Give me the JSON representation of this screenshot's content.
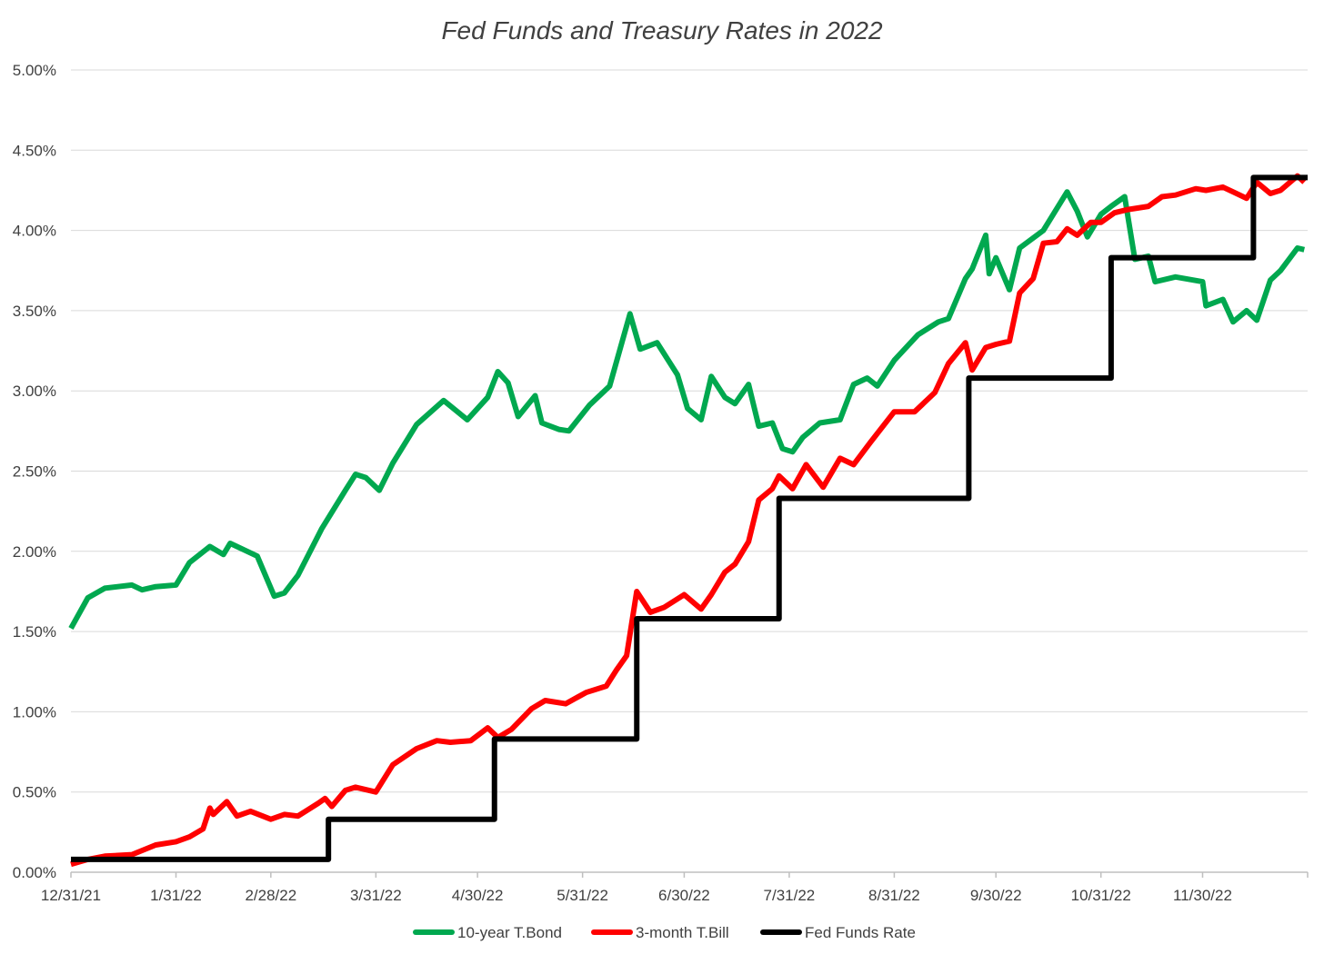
{
  "chart_data": {
    "type": "line",
    "title": "Fed Funds and Treasury Rates in 2022",
    "xlabel": "",
    "ylabel": "",
    "ylim": [
      0,
      0.05
    ],
    "xlim": [
      "2021-12-31",
      "2022-12-31"
    ],
    "grid": true,
    "legend_position": "bottom",
    "y_ticks": [
      "0.00%",
      "0.50%",
      "1.00%",
      "1.50%",
      "2.00%",
      "2.50%",
      "3.00%",
      "3.50%",
      "4.00%",
      "4.50%",
      "5.00%"
    ],
    "x_ticks": [
      {
        "date": "2021-12-31",
        "label": "12/31/21"
      },
      {
        "date": "2022-01-31",
        "label": "1/31/22"
      },
      {
        "date": "2022-02-28",
        "label": "2/28/22"
      },
      {
        "date": "2022-03-31",
        "label": "3/31/22"
      },
      {
        "date": "2022-04-30",
        "label": "4/30/22"
      },
      {
        "date": "2022-05-31",
        "label": "5/31/22"
      },
      {
        "date": "2022-06-30",
        "label": "6/30/22"
      },
      {
        "date": "2022-07-31",
        "label": "7/31/22"
      },
      {
        "date": "2022-08-31",
        "label": "8/31/22"
      },
      {
        "date": "2022-09-30",
        "label": "9/30/22"
      },
      {
        "date": "2022-10-31",
        "label": "10/31/22"
      },
      {
        "date": "2022-11-30",
        "label": "11/30/22"
      }
    ],
    "series": [
      {
        "name": "10-year T.Bond",
        "color": "#00a84f",
        "style": "line",
        "x": [
          "2021-12-31",
          "2022-01-05",
          "2022-01-10",
          "2022-01-18",
          "2022-01-21",
          "2022-01-25",
          "2022-01-31",
          "2022-02-04",
          "2022-02-10",
          "2022-02-14",
          "2022-02-16",
          "2022-02-24",
          "2022-03-01",
          "2022-03-04",
          "2022-03-08",
          "2022-03-15",
          "2022-03-22",
          "2022-03-25",
          "2022-03-28",
          "2022-04-01",
          "2022-04-05",
          "2022-04-12",
          "2022-04-20",
          "2022-04-27",
          "2022-05-03",
          "2022-05-06",
          "2022-05-09",
          "2022-05-12",
          "2022-05-17",
          "2022-05-19",
          "2022-05-24",
          "2022-05-27",
          "2022-06-02",
          "2022-06-08",
          "2022-06-14",
          "2022-06-17",
          "2022-06-22",
          "2022-06-28",
          "2022-07-01",
          "2022-07-05",
          "2022-07-08",
          "2022-07-12",
          "2022-07-15",
          "2022-07-19",
          "2022-07-22",
          "2022-07-26",
          "2022-07-29",
          "2022-08-01",
          "2022-08-04",
          "2022-08-09",
          "2022-08-15",
          "2022-08-19",
          "2022-08-23",
          "2022-08-26",
          "2022-08-31",
          "2022-09-07",
          "2022-09-13",
          "2022-09-16",
          "2022-09-21",
          "2022-09-23",
          "2022-09-27",
          "2022-09-28",
          "2022-09-30",
          "2022-10-04",
          "2022-10-07",
          "2022-10-14",
          "2022-10-21",
          "2022-10-24",
          "2022-10-27",
          "2022-10-31",
          "2022-11-03",
          "2022-11-07",
          "2022-11-10",
          "2022-11-14",
          "2022-11-16",
          "2022-11-22",
          "2022-11-30",
          "2022-12-01",
          "2022-12-06",
          "2022-12-09",
          "2022-12-13",
          "2022-12-16",
          "2022-12-20",
          "2022-12-23",
          "2022-12-28",
          "2022-12-30"
        ],
        "values": [
          1.52,
          1.71,
          1.77,
          1.79,
          1.76,
          1.78,
          1.79,
          1.93,
          2.03,
          1.98,
          2.05,
          1.97,
          1.72,
          1.74,
          1.85,
          2.14,
          2.38,
          2.48,
          2.46,
          2.38,
          2.55,
          2.79,
          2.94,
          2.82,
          2.96,
          3.12,
          3.05,
          2.84,
          2.97,
          2.8,
          2.76,
          2.75,
          2.91,
          3.03,
          3.48,
          3.26,
          3.3,
          3.1,
          2.89,
          2.82,
          3.09,
          2.96,
          2.92,
          3.04,
          2.78,
          2.8,
          2.64,
          2.62,
          2.71,
          2.8,
          2.82,
          3.04,
          3.08,
          3.03,
          3.19,
          3.35,
          3.43,
          3.45,
          3.7,
          3.76,
          3.97,
          3.73,
          3.83,
          3.63,
          3.89,
          4.0,
          4.24,
          4.12,
          3.96,
          4.1,
          4.15,
          4.21,
          3.82,
          3.84,
          3.68,
          3.71,
          3.68,
          3.53,
          3.57,
          3.43,
          3.5,
          3.44,
          3.69,
          3.75,
          3.89,
          3.88
        ]
      },
      {
        "name": "3-month T.Bill",
        "color": "#ff0000",
        "style": "line",
        "x": [
          "2021-12-31",
          "2022-01-05",
          "2022-01-10",
          "2022-01-18",
          "2022-01-25",
          "2022-01-31",
          "2022-02-04",
          "2022-02-08",
          "2022-02-10",
          "2022-02-11",
          "2022-02-15",
          "2022-02-18",
          "2022-02-22",
          "2022-02-28",
          "2022-03-04",
          "2022-03-08",
          "2022-03-14",
          "2022-03-16",
          "2022-03-18",
          "2022-03-22",
          "2022-03-25",
          "2022-03-31",
          "2022-04-05",
          "2022-04-12",
          "2022-04-18",
          "2022-04-22",
          "2022-04-28",
          "2022-05-03",
          "2022-05-06",
          "2022-05-10",
          "2022-05-16",
          "2022-05-20",
          "2022-05-26",
          "2022-06-01",
          "2022-06-07",
          "2022-06-10",
          "2022-06-13",
          "2022-06-16",
          "2022-06-20",
          "2022-06-24",
          "2022-06-30",
          "2022-07-05",
          "2022-07-08",
          "2022-07-12",
          "2022-07-15",
          "2022-07-19",
          "2022-07-22",
          "2022-07-26",
          "2022-07-28",
          "2022-08-01",
          "2022-08-05",
          "2022-08-10",
          "2022-08-15",
          "2022-08-19",
          "2022-08-24",
          "2022-08-31",
          "2022-09-06",
          "2022-09-12",
          "2022-09-16",
          "2022-09-21",
          "2022-09-23",
          "2022-09-27",
          "2022-09-30",
          "2022-10-04",
          "2022-10-07",
          "2022-10-11",
          "2022-10-14",
          "2022-10-18",
          "2022-10-21",
          "2022-10-24",
          "2022-10-28",
          "2022-10-31",
          "2022-11-04",
          "2022-11-08",
          "2022-11-14",
          "2022-11-18",
          "2022-11-22",
          "2022-11-28",
          "2022-12-01",
          "2022-12-06",
          "2022-12-09",
          "2022-12-13",
          "2022-12-16",
          "2022-12-20",
          "2022-12-23",
          "2022-12-28",
          "2022-12-30"
        ],
        "values": [
          0.05,
          0.08,
          0.1,
          0.11,
          0.17,
          0.19,
          0.22,
          0.27,
          0.4,
          0.36,
          0.44,
          0.35,
          0.38,
          0.33,
          0.36,
          0.35,
          0.43,
          0.46,
          0.41,
          0.51,
          0.53,
          0.5,
          0.67,
          0.77,
          0.82,
          0.81,
          0.82,
          0.9,
          0.84,
          0.89,
          1.02,
          1.07,
          1.05,
          1.12,
          1.16,
          1.26,
          1.35,
          1.75,
          1.62,
          1.65,
          1.73,
          1.64,
          1.73,
          1.87,
          1.92,
          2.06,
          2.32,
          2.39,
          2.47,
          2.39,
          2.54,
          2.4,
          2.58,
          2.54,
          2.68,
          2.87,
          2.87,
          2.99,
          3.17,
          3.3,
          3.13,
          3.27,
          3.29,
          3.31,
          3.61,
          3.7,
          3.92,
          3.93,
          4.01,
          3.97,
          4.05,
          4.05,
          4.11,
          4.13,
          4.15,
          4.21,
          4.22,
          4.26,
          4.25,
          4.27,
          4.24,
          4.2,
          4.3,
          4.23,
          4.25,
          4.34,
          4.3
        ]
      },
      {
        "name": "Fed Funds Rate",
        "color": "#000000",
        "style": "step",
        "x": [
          "2021-12-31",
          "2022-03-17",
          "2022-05-05",
          "2022-06-16",
          "2022-07-28",
          "2022-09-22",
          "2022-11-03",
          "2022-12-15",
          "2022-12-31"
        ],
        "values": [
          0.08,
          0.33,
          0.83,
          1.58,
          2.33,
          3.08,
          3.83,
          4.33,
          4.33
        ]
      }
    ]
  }
}
